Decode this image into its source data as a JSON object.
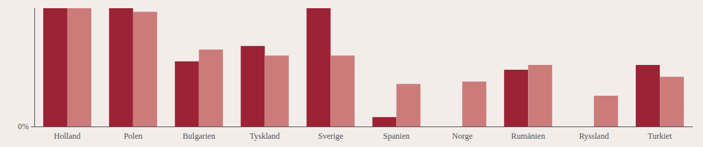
{
  "chart_data": {
    "type": "bar",
    "categories": [
      "Holland",
      "Polen",
      "Bulgarien",
      "Tyskland",
      "Sverige",
      "Spanien",
      "Norge",
      "Rumänien",
      "Ryssland",
      "Turkiet"
    ],
    "series": [
      {
        "color": "#9b2335",
        "values": [
          100,
          100,
          55,
          68,
          100,
          8,
          0,
          48,
          0,
          52
        ]
      },
      {
        "color": "#cc7b7b",
        "values": [
          100,
          97,
          65,
          60,
          60,
          36,
          38,
          52,
          26,
          42
        ]
      }
    ],
    "ylim": [
      0,
      100
    ],
    "yticks": [
      {
        "value": 0,
        "label": "0%"
      }
    ],
    "grid": false
  }
}
